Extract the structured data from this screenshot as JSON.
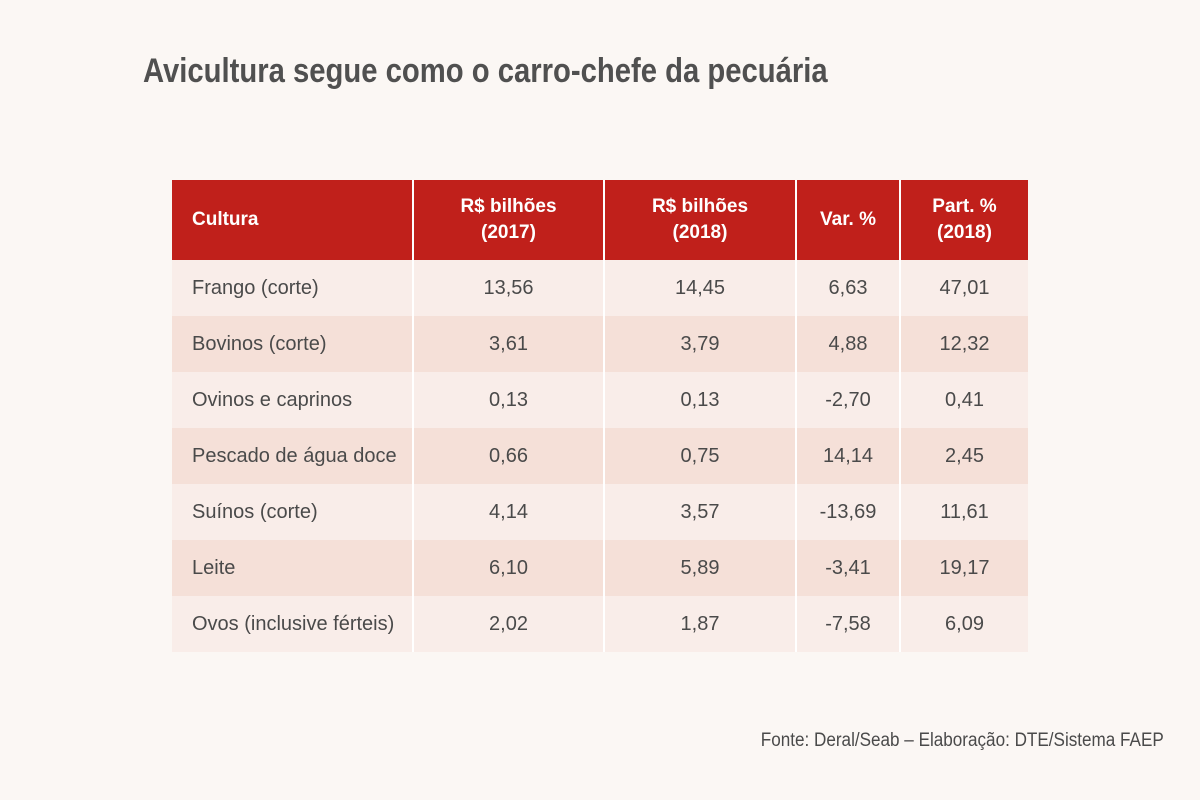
{
  "title": "Avicultura segue como o carro-chefe da pecuária",
  "source": "Fonte: Deral/Seab – Elaboração: DTE/Sistema FAEP",
  "colors": {
    "header_bg": "#c0201b",
    "row_light": "#f9ede9",
    "row_dark": "#f5e0d8",
    "background": "#fbf7f4"
  },
  "chart_data": {
    "type": "table",
    "title": "Avicultura segue como o carro-chefe da pecuária",
    "columns": [
      "Cultura",
      "R$ bilhões\n(2017)",
      "R$ bilhões\n(2018)",
      "Var. %",
      "Part. %\n(2018)"
    ],
    "rows": [
      [
        "Frango (corte)",
        "13,56",
        "14,45",
        "6,63",
        "47,01"
      ],
      [
        "Bovinos (corte)",
        "3,61",
        "3,79",
        "4,88",
        "12,32"
      ],
      [
        "Ovinos e caprinos",
        "0,13",
        "0,13",
        "-2,70",
        "0,41"
      ],
      [
        "Pescado de água doce",
        "0,66",
        "0,75",
        "14,14",
        "2,45"
      ],
      [
        "Suínos (corte)",
        "4,14",
        "3,57",
        "-13,69",
        "11,61"
      ],
      [
        "Leite",
        "6,10",
        "5,89",
        "-3,41",
        "19,17"
      ],
      [
        "Ovos (inclusive férteis)",
        "2,02",
        "1,87",
        "-7,58",
        "6,09"
      ]
    ]
  }
}
